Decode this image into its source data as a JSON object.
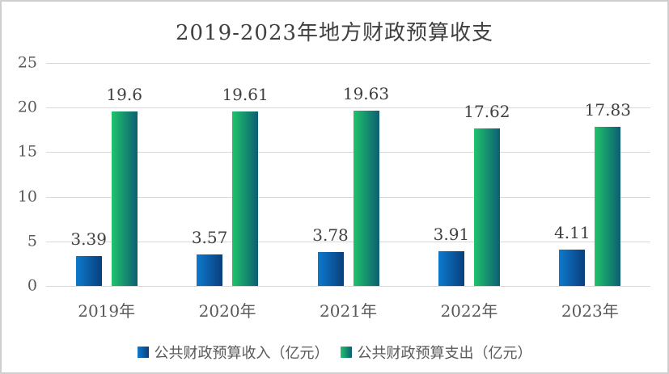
{
  "title": "2019-2023年地方财政预算收支",
  "colors": {
    "revenue_gradient_start": "#0C79CE",
    "revenue_gradient_end": "#0A3F7B",
    "expense_gradient_start": "#1FC36B",
    "expense_gradient_end": "#0D5E72",
    "gridline": "#D9D9D9",
    "title_text": "#404040",
    "axis_text": "#595959",
    "value_text": "#404040"
  },
  "chart_data": {
    "type": "bar",
    "title": "2019-2023年地方财政预算收支",
    "categories": [
      "2019年",
      "2020年",
      "2021年",
      "2022年",
      "2023年"
    ],
    "series": [
      {
        "name": "公共财政预算收入（亿元）",
        "values": [
          3.39,
          3.57,
          3.78,
          3.91,
          4.11
        ],
        "color_start": "#0C79CE",
        "color_end": "#0A3F7B"
      },
      {
        "name": "公共财政预算支出（亿元）",
        "values": [
          19.6,
          19.61,
          19.63,
          17.62,
          17.83
        ],
        "color_start": "#1FC36B",
        "color_end": "#0D5E72"
      }
    ],
    "y_ticks": [
      0,
      5,
      10,
      15,
      20,
      25
    ],
    "ylim": [
      0,
      25
    ],
    "grid": true,
    "legend_position": "bottom",
    "value_labels": true,
    "xlabel": "",
    "ylabel": ""
  }
}
